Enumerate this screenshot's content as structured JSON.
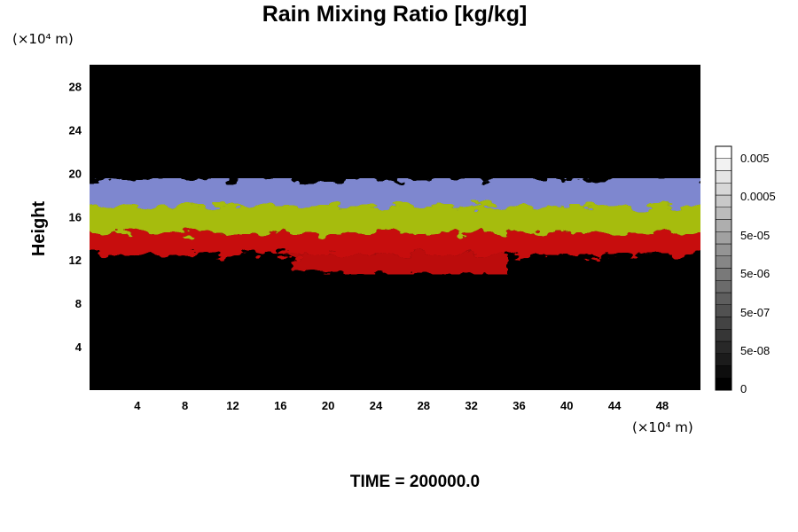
{
  "chart_data": {
    "type": "heatmap",
    "title": "Rain Mixing Ratio [kg/kg]",
    "xlabel": "",
    "ylabel": "Height",
    "x_unit_label": "(×10⁴ m)",
    "y_unit_label": "(×10⁴ m)",
    "time_label": "TIME = 200000.0",
    "xlim": [
      0,
      51.2
    ],
    "ylim": [
      0,
      30
    ],
    "xticks": [
      4,
      8,
      12,
      16,
      20,
      24,
      28,
      32,
      36,
      40,
      44,
      48
    ],
    "yticks": [
      4,
      8,
      12,
      16,
      20,
      24,
      28
    ],
    "background_color": "#000000",
    "layers": [
      {
        "color": "#dd1010",
        "description": "red band",
        "y_bottom": 12.5,
        "y_top": 14.5
      },
      {
        "color": "#b8d010",
        "description": "yellow-green band",
        "y_bottom": 14.5,
        "y_top": 17
      },
      {
        "color": "#8c96e6",
        "description": "blue band",
        "y_bottom": 17,
        "y_top": 19.5
      }
    ],
    "colorbar": {
      "scale": "log",
      "labels": [
        "0.005",
        "0.0005",
        "5e-05",
        "5e-06",
        "5e-07",
        "5e-08",
        "0"
      ],
      "levels": 20,
      "colors": [
        "#000000",
        "#ffffff"
      ]
    }
  }
}
